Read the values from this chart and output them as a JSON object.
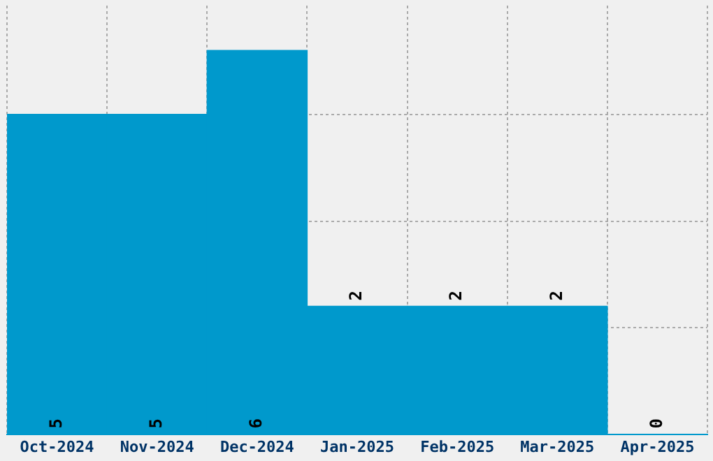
{
  "chart_data": {
    "type": "bar",
    "categories": [
      "Oct-2024",
      "Nov-2024",
      "Dec-2024",
      "Jan-2025",
      "Feb-2025",
      "Mar-2025",
      "Apr-2025"
    ],
    "values": [
      5,
      5,
      6,
      2,
      2,
      2,
      0
    ],
    "color": "#0099cc",
    "data_labels": true,
    "grid": true,
    "tick_labels": "x",
    "ylim": [
      0,
      6.7
    ],
    "yticks": [
      {
        "value": 1.67,
        "label": null
      },
      {
        "value": 3.33,
        "label": null
      },
      {
        "value": 5,
        "label": null
      }
    ]
  }
}
